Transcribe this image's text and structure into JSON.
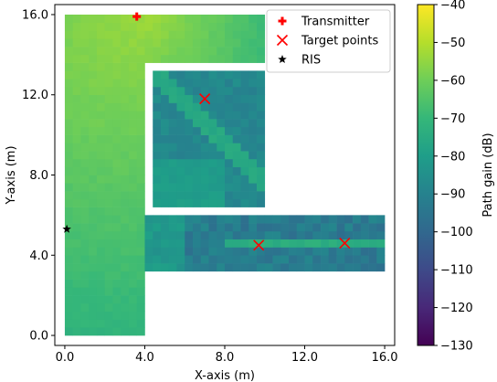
{
  "chart_data": {
    "type": "heatmap",
    "title": "",
    "xlabel": "X-axis (m)",
    "ylabel": "Y-axis (m)",
    "xlim": [
      -0.5,
      16.5
    ],
    "ylim": [
      -0.5,
      16.5
    ],
    "x_ticks": [
      0.0,
      4.0,
      8.0,
      12.0,
      16.0
    ],
    "x_tick_labels": [
      "0.0",
      "4.0",
      "8.0",
      "12.0",
      "16.0"
    ],
    "y_ticks": [
      0.0,
      4.0,
      8.0,
      12.0,
      16.0
    ],
    "y_tick_labels": [
      "0.0",
      "4.0",
      "8.0",
      "12.0",
      "16.0"
    ],
    "grid": false,
    "legend_position": "top-right",
    "cell_size_m": 0.4,
    "colorbar": {
      "label": "Path gain (dB)",
      "colormap": "viridis",
      "range": [
        -130,
        -40
      ],
      "ticks": [
        -40,
        -50,
        -60,
        -70,
        -80,
        -90,
        -100,
        -110,
        -120,
        -130
      ],
      "tick_labels": [
        "−40",
        "−50",
        "−60",
        "−70",
        "−80",
        "−90",
        "−100",
        "−110",
        "−120",
        "−130"
      ]
    },
    "regions": [
      {
        "name": "vertical corridor",
        "x": [
          0.0,
          4.0
        ],
        "y": [
          0.0,
          16.0
        ],
        "gain_db_range": [
          -74,
          -64
        ]
      },
      {
        "name": "top hallway",
        "x": [
          4.0,
          10.0
        ],
        "y": [
          13.6,
          16.0
        ],
        "gain_db_range": [
          -70,
          -50
        ]
      },
      {
        "name": "upper room",
        "x": [
          4.4,
          10.0
        ],
        "y": [
          6.4,
          13.2
        ],
        "gain_db_range": [
          -92,
          -72
        ]
      },
      {
        "name": "lower corridor",
        "x": [
          4.0,
          16.0
        ],
        "y": [
          3.2,
          6.0
        ],
        "gain_db_range": [
          -100,
          -72
        ]
      }
    ],
    "series": [
      {
        "name": "Transmitter",
        "marker": "plus",
        "color": "#ff0000",
        "points": [
          [
            3.6,
            15.9
          ]
        ]
      },
      {
        "name": "Target points",
        "marker": "x",
        "color": "#ff0000",
        "points": [
          [
            7.0,
            11.8
          ],
          [
            9.7,
            4.5
          ],
          [
            14.0,
            4.6
          ]
        ]
      },
      {
        "name": "RIS",
        "marker": "star",
        "color": "#000000",
        "points": [
          [
            0.1,
            5.3
          ]
        ]
      }
    ]
  }
}
